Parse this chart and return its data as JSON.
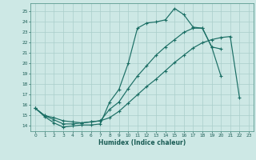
{
  "xlabel": "Humidex (Indice chaleur)",
  "bg_color": "#cde8e5",
  "line_color": "#1a6e64",
  "grid_color": "#aaceca",
  "xlim": [
    -0.5,
    23.5
  ],
  "ylim": [
    13.5,
    25.8
  ],
  "yticks": [
    14,
    15,
    16,
    17,
    18,
    19,
    20,
    21,
    22,
    23,
    24,
    25
  ],
  "xticks": [
    0,
    1,
    2,
    3,
    4,
    5,
    6,
    7,
    8,
    9,
    10,
    11,
    12,
    13,
    14,
    15,
    16,
    17,
    18,
    19,
    20,
    21,
    22,
    23
  ],
  "line1_y": [
    15.7,
    14.9,
    14.3,
    13.9,
    14.0,
    14.1,
    14.1,
    14.2,
    16.3,
    17.5,
    20.0,
    23.4,
    23.9,
    24.0,
    24.2,
    25.3,
    24.7,
    23.5,
    23.4,
    21.6,
    18.8,
    null,
    null,
    null
  ],
  "line2_y": [
    15.7,
    15.0,
    14.6,
    14.2,
    14.2,
    14.3,
    14.4,
    14.5,
    15.6,
    16.3,
    17.6,
    18.8,
    19.8,
    20.8,
    21.6,
    22.3,
    23.0,
    23.4,
    23.4,
    21.6,
    21.4,
    null,
    null,
    null
  ],
  "line3_y": [
    15.7,
    15.0,
    14.8,
    14.5,
    14.4,
    14.3,
    14.4,
    14.5,
    14.8,
    15.4,
    16.2,
    17.0,
    17.8,
    18.5,
    19.3,
    20.1,
    20.8,
    21.5,
    22.0,
    22.3,
    22.5,
    22.6,
    16.7,
    null
  ]
}
